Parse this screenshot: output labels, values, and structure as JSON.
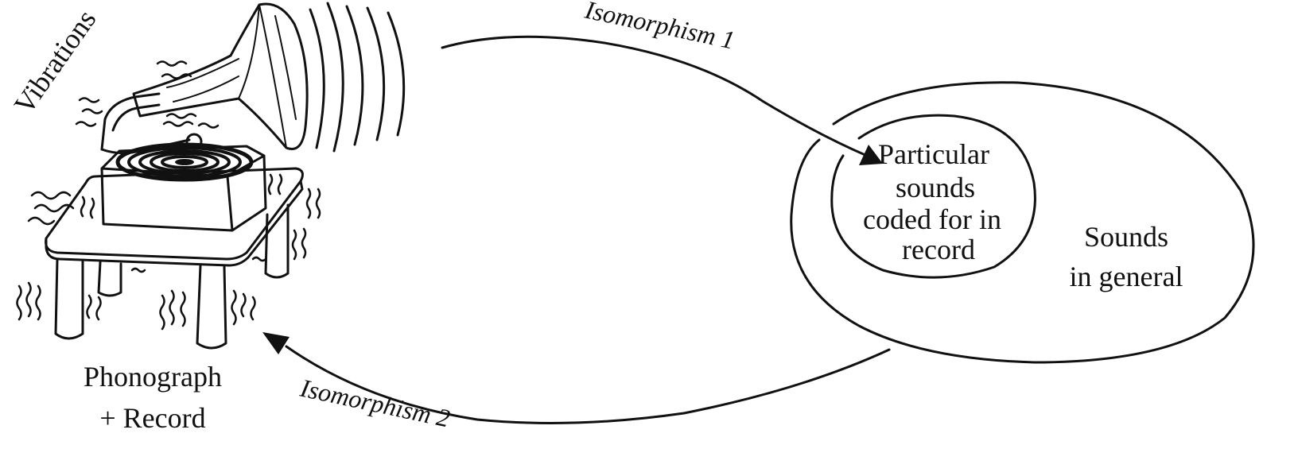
{
  "labels": {
    "vibrations": "Vibrations",
    "phonograph_line1": "Phonograph",
    "phonograph_line2": "+ Record",
    "iso1": "Isomorphism 1",
    "iso2": "Isomorphism 2",
    "inner_line1": "Particular",
    "inner_line2": "sounds",
    "inner_line3": "coded for in",
    "inner_line4": "record",
    "outer_line1": "Sounds",
    "outer_line2": "in general"
  },
  "colors": {
    "ink": "#111111",
    "background": "#ffffff"
  }
}
